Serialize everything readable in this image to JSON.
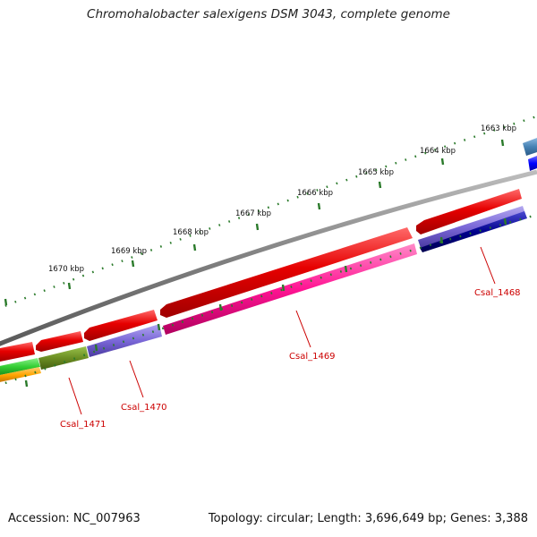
{
  "title": "Chromohalobacter salexigens DSM 3043, complete genome",
  "footer": {
    "accession": "Accession: NC_007963",
    "topology": "Topology: circular; Length: 3,696,649 bp; Genes: 3,388"
  },
  "ruler_labels": [
    "1663 kbp",
    "1664 kbp",
    "1665 kbp",
    "1666 kbp",
    "1667 kbp",
    "1668 kbp",
    "1669 kbp",
    "1670 kbp"
  ],
  "gene_labels": [
    "Csal_1468",
    "Csal_1469",
    "Csal_1470",
    "Csal_1471"
  ],
  "colors": {
    "backbone": "#808080",
    "tick": "#2a7a2a",
    "forward_cds": "#e60000",
    "reverse_magenta": "#ff1493",
    "reverse_slate": "#7b68d8",
    "reverse_navy": "#00008b",
    "reverse_olive": "#6b8e23",
    "green": "#32cd32",
    "orange": "#ffa500",
    "steel": "#4682b4",
    "blue": "#0000ff",
    "label_red": "#cc0000"
  }
}
